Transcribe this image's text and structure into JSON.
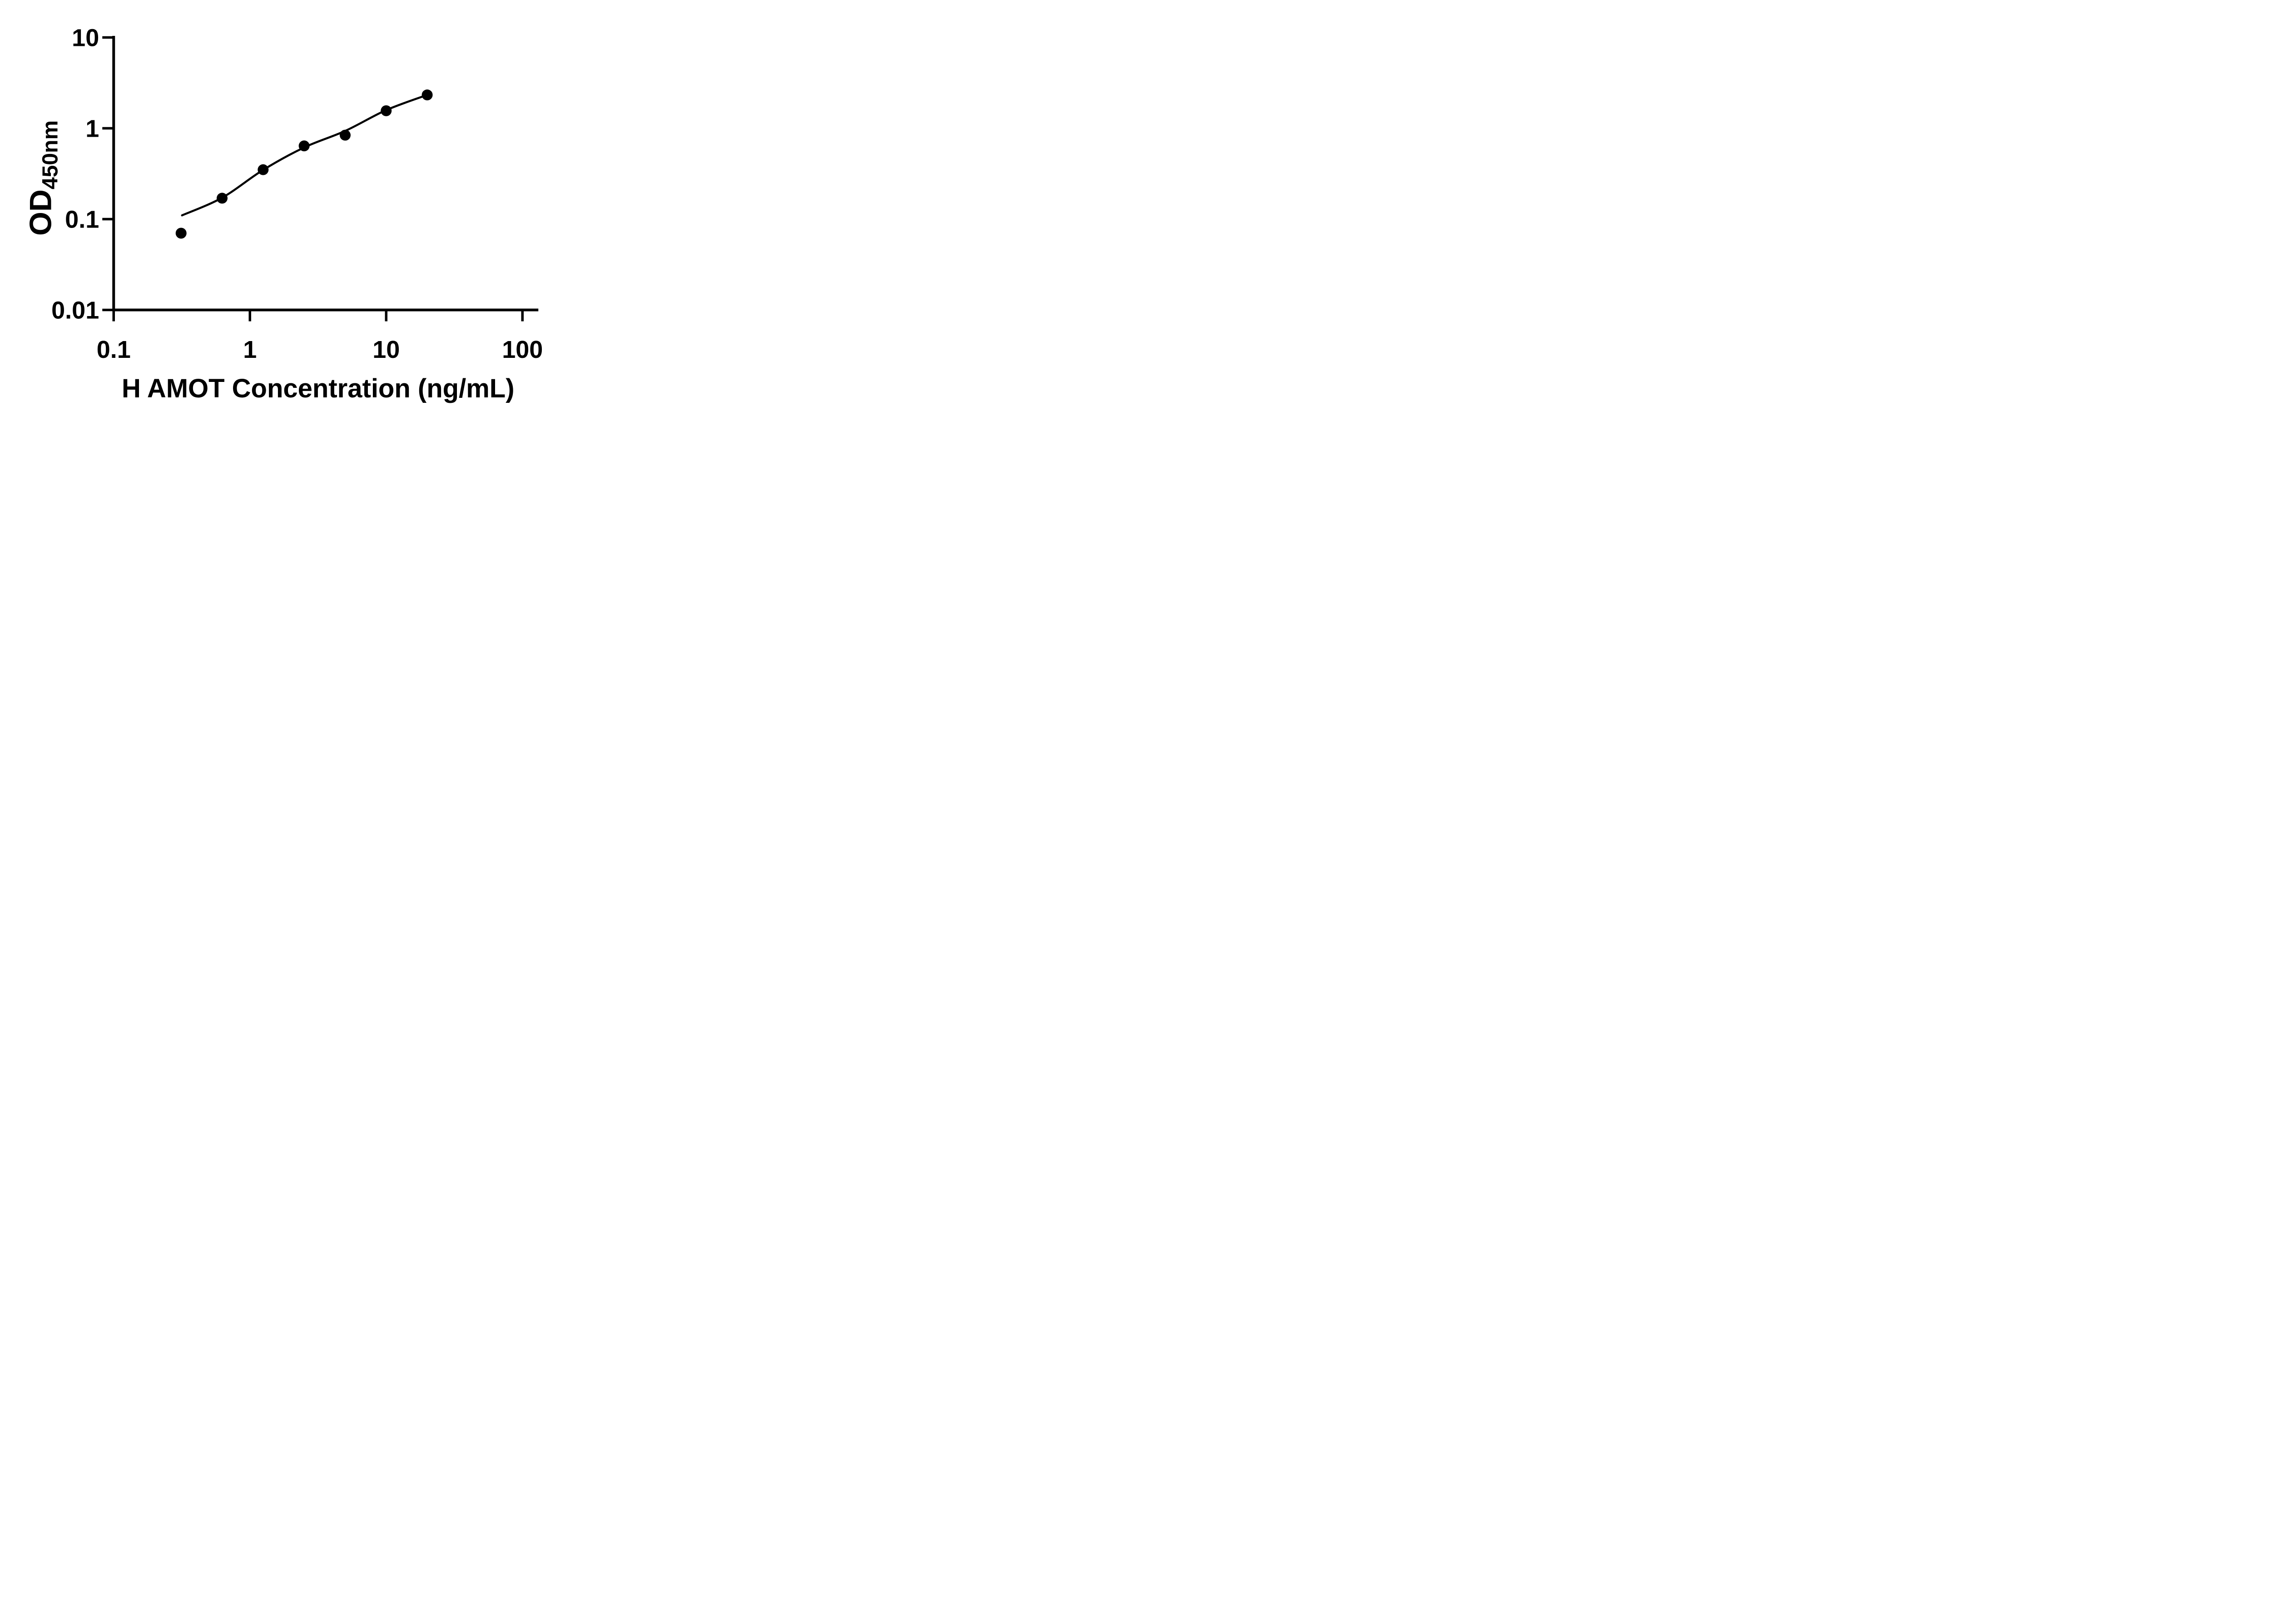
{
  "figure": {
    "background": "#ffffff",
    "ink_color": "#000000"
  },
  "chart_data": {
    "type": "scatter",
    "title": "",
    "xlabel": "H AMOT Concentration (ng/mL)",
    "ylabel_main": "OD",
    "ylabel_sub": "450nm",
    "x_scale": "log",
    "y_scale": "log",
    "xlim": [
      0.1,
      150
    ],
    "ylim": [
      0.01,
      10
    ],
    "x_ticks": [
      "0.1",
      "1",
      "10",
      "100"
    ],
    "y_ticks": [
      "10",
      "1",
      "0.1",
      "0.01"
    ],
    "grid": false,
    "legend": "none",
    "marker": "filled-circle",
    "series": [
      {
        "name": "standard-points",
        "color": "#000000",
        "points": [
          {
            "x": 0.3125,
            "y": 0.07
          },
          {
            "x": 0.625,
            "y": 0.17
          },
          {
            "x": 1.25,
            "y": 0.35
          },
          {
            "x": 2.5,
            "y": 0.64
          },
          {
            "x": 5,
            "y": 0.84
          },
          {
            "x": 10,
            "y": 1.56
          },
          {
            "x": 20,
            "y": 2.33
          }
        ]
      }
    ],
    "fit_curve": {
      "name": "fitted-standard-curve",
      "color": "#000000",
      "points": [
        {
          "x": 0.3175,
          "y": 0.11
        },
        {
          "x": 0.625,
          "y": 0.172
        },
        {
          "x": 1.25,
          "y": 0.348
        },
        {
          "x": 2.5,
          "y": 0.615
        },
        {
          "x": 5,
          "y": 0.935
        },
        {
          "x": 10,
          "y": 1.585
        },
        {
          "x": 20,
          "y": 2.33
        }
      ]
    }
  }
}
